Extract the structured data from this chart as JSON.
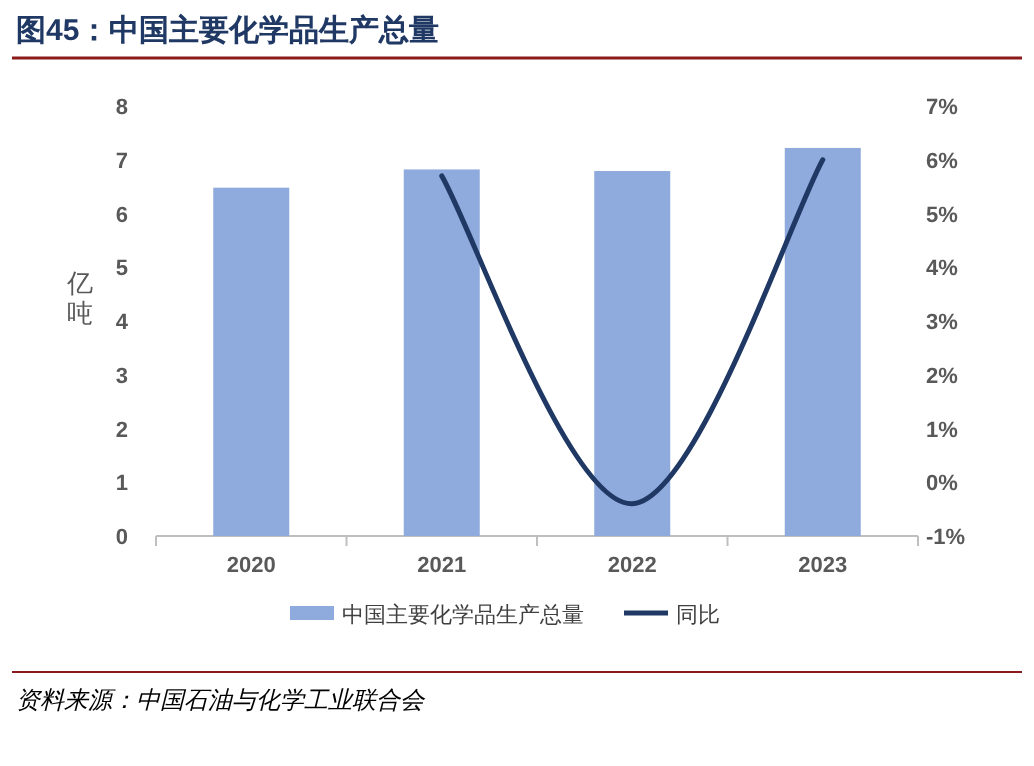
{
  "chart_data": {
    "type": "bar",
    "title": "图45：中国主要化学品生产总量",
    "ylabel": "亿吨",
    "categories": [
      "2020",
      "2021",
      "2022",
      "2023"
    ],
    "series": [
      {
        "name": "中国主要化学品生产总量",
        "color": "#8faadc",
        "values": [
          6.48,
          6.82,
          6.79,
          7.22
        ]
      },
      {
        "name": "同比",
        "type": "line",
        "axis": "y2",
        "color": "#1f3864",
        "values": [
          null,
          5.7,
          -0.4,
          6.0
        ]
      }
    ],
    "ylim": [
      0,
      8
    ],
    "yticks": [
      0,
      1,
      2,
      3,
      4,
      5,
      6,
      7,
      8
    ],
    "y2lim": [
      -1,
      7
    ],
    "y2ticks": [
      {
        "value": -1,
        "label": "-1%"
      },
      {
        "value": 0,
        "label": "0%"
      },
      {
        "value": 1,
        "label": "1%"
      },
      {
        "value": 2,
        "label": "2%"
      },
      {
        "value": 3,
        "label": "3%"
      },
      {
        "value": 4,
        "label": "4%"
      },
      {
        "value": 5,
        "label": "5%"
      },
      {
        "value": 6,
        "label": "6%"
      },
      {
        "value": 7,
        "label": "7%"
      }
    ],
    "grid": false,
    "legend": "bottom",
    "marker": "none",
    "line_style": "solid",
    "annotations": [
      "资料来源：中国石油与化学工业联合会"
    ]
  }
}
